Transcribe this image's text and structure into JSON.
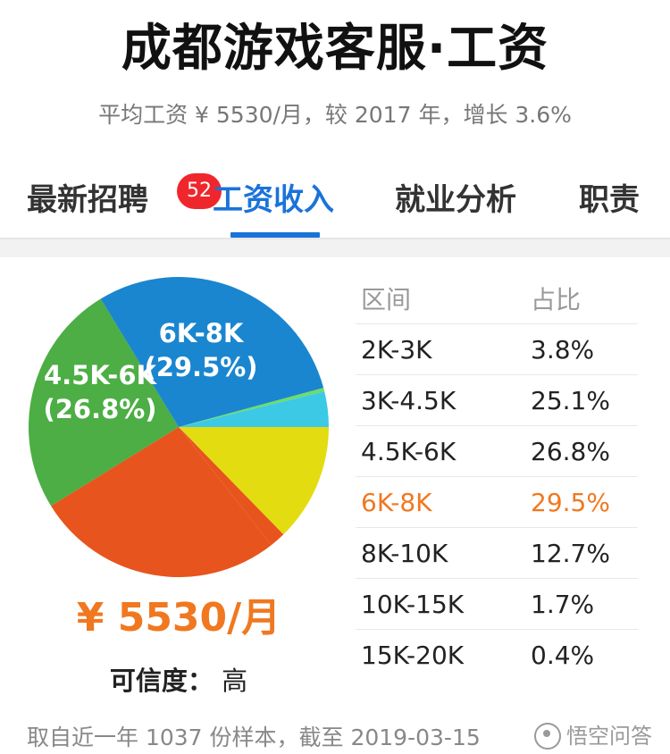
{
  "header": {
    "title": "成都游戏客服·工资",
    "subtitle": "平均工资 ¥ 5530/月，较 2017 年，增长 3.6%"
  },
  "tabs": [
    {
      "label": "最新招聘",
      "badge": "52",
      "active": false
    },
    {
      "label": "工资收入",
      "active": true
    },
    {
      "label": "就业分析",
      "active": false
    },
    {
      "label": "职责",
      "active": false
    }
  ],
  "colors": {
    "accent": "#1a73d9",
    "highlight": "#f07820",
    "badge": "#f0262d"
  },
  "chart_data": {
    "type": "pie",
    "slices": [
      {
        "label": "2K-3K",
        "value": 3.8,
        "color": "#3cc9e6"
      },
      {
        "label": "3K-4.5K",
        "value": 25.1,
        "color": "#4cae44"
      },
      {
        "label": "4.5K-6K",
        "value": 26.8,
        "color": "#e8541e"
      },
      {
        "label": "6K-8K",
        "value": 29.5,
        "color": "#1a86cf"
      },
      {
        "label": "8K-10K",
        "value": 12.7,
        "color": "#e3dc10"
      },
      {
        "label": "10K-15K",
        "value": 1.7,
        "color": "#e8541e"
      },
      {
        "label": "15K-20K",
        "value": 0.4,
        "color": "#6edc6a"
      }
    ],
    "in_chart_labels": [
      {
        "line1": "6K-8K",
        "line2": "(29.5%)"
      },
      {
        "line1": "4.5K-6K",
        "line2": "(26.8%)"
      }
    ]
  },
  "summary": {
    "average": "¥ 5530/月",
    "credibility_label": "可信度：",
    "credibility_value": "高"
  },
  "table": {
    "headers": [
      "区间",
      "占比"
    ],
    "rows": [
      {
        "range": "2K-3K",
        "pct": "3.8%",
        "highlight": false
      },
      {
        "range": "3K-4.5K",
        "pct": "25.1%",
        "highlight": false
      },
      {
        "range": "4.5K-6K",
        "pct": "26.8%",
        "highlight": false
      },
      {
        "range": "6K-8K",
        "pct": "29.5%",
        "highlight": true
      },
      {
        "range": "8K-10K",
        "pct": "12.7%",
        "highlight": false
      },
      {
        "range": "10K-15K",
        "pct": "1.7%",
        "highlight": false
      },
      {
        "range": "15K-20K",
        "pct": "0.4%",
        "highlight": false
      }
    ]
  },
  "footer": {
    "source": "取自近一年 1037 份样本，截至 2019-03-15",
    "watermark": "悟空问答"
  }
}
